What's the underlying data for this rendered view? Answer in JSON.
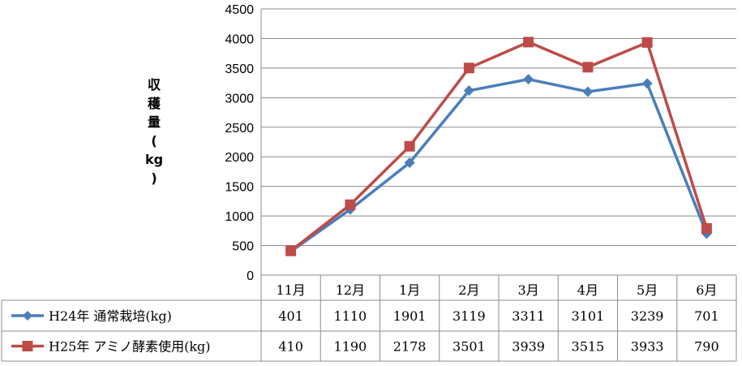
{
  "chart_data": {
    "type": "line",
    "categories": [
      "11月",
      "12月",
      "1月",
      "2月",
      "3月",
      "4月",
      "5月",
      "6月"
    ],
    "series": [
      {
        "name": "H24年 通常栽培(kg)",
        "values": [
          401,
          1110,
          1901,
          3119,
          3311,
          3101,
          3239,
          701
        ],
        "color": "#4a7ebb",
        "marker": "diamond"
      },
      {
        "name": "H25年 アミノ酵素使用(kg)",
        "values": [
          410,
          1190,
          2178,
          3501,
          3939,
          3515,
          3933,
          790
        ],
        "color": "#be4b48",
        "marker": "square"
      }
    ],
    "ylabel": "収穫量(kg)",
    "ylabel_chars": [
      "収",
      "穫",
      "量",
      "(",
      "kg",
      ")"
    ],
    "ylim": [
      0,
      4500
    ],
    "yticks": [
      "0",
      "500",
      "1000",
      "1500",
      "2000",
      "2500",
      "3000",
      "3500",
      "4000",
      "4500"
    ],
    "grid": true,
    "legend": "data-table"
  }
}
